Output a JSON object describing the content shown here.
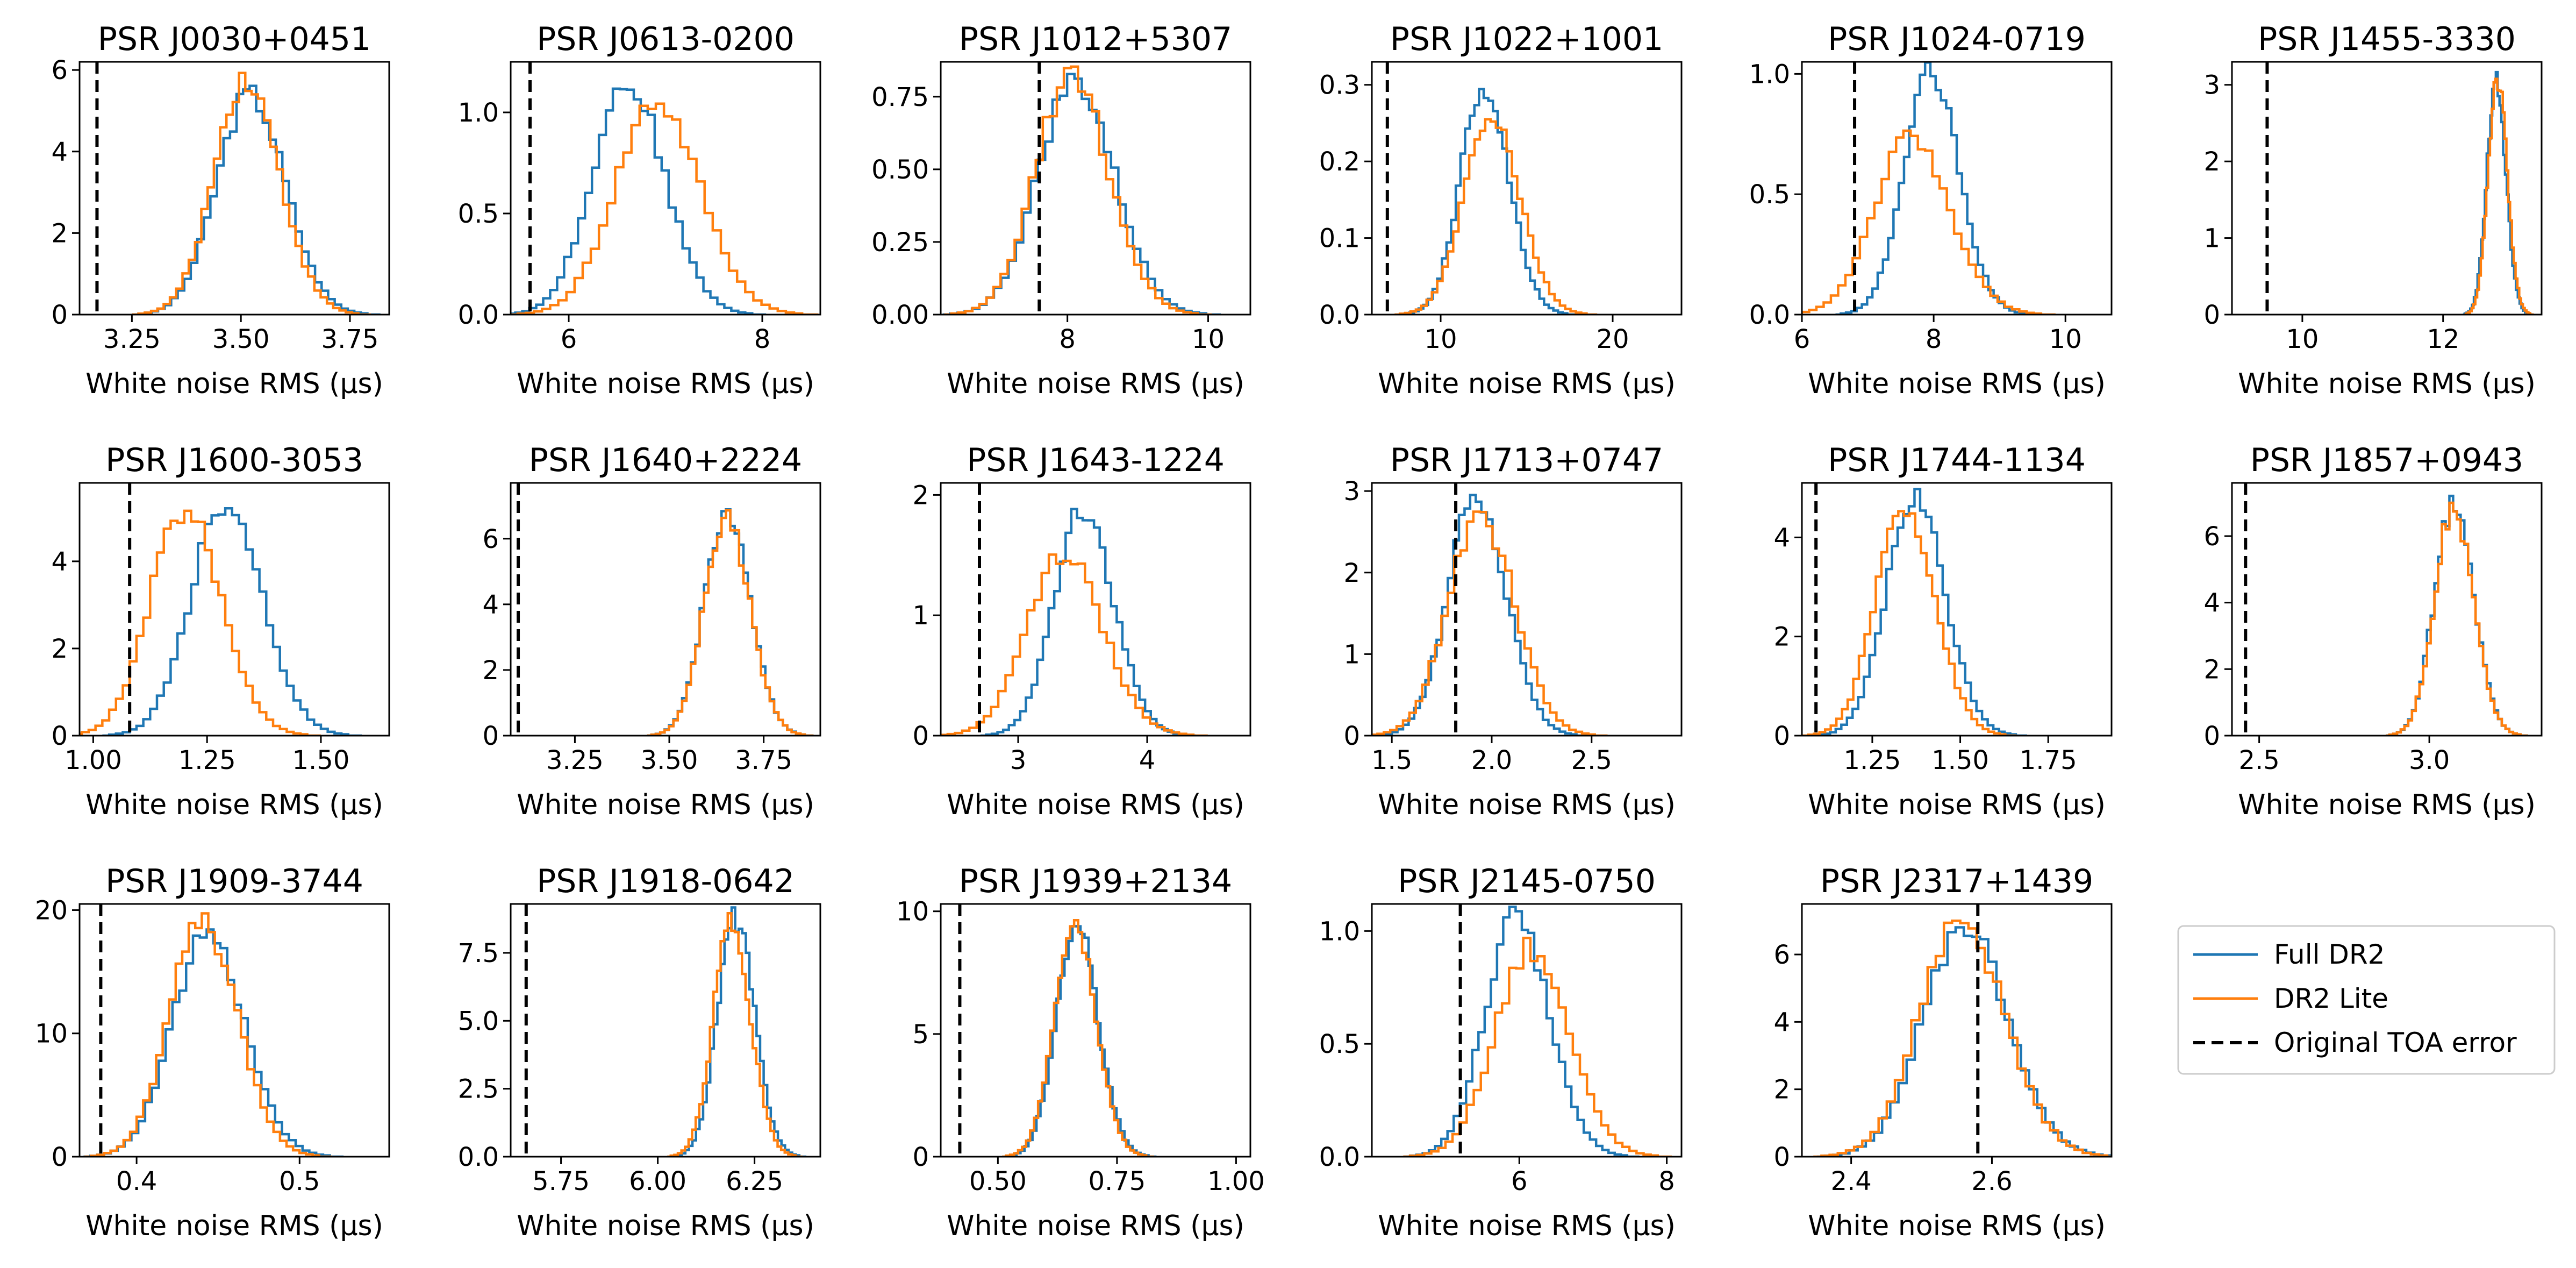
{
  "legend": {
    "location": "right of last row",
    "entries": [
      {
        "label": "Full DR2",
        "color": "#1f77b4",
        "style": "solid"
      },
      {
        "label": "DR2 Lite",
        "color": "#ff7f0e",
        "style": "solid"
      },
      {
        "label": "Original TOA error",
        "color": "#000000",
        "style": "dashed"
      }
    ]
  },
  "chart_data": [
    {
      "type": "histogram",
      "title": "PSR J0030+0451",
      "xlabel": "White noise RMS (μs)",
      "xlim": [
        3.13,
        3.84
      ],
      "ylim": [
        0,
        6.2
      ],
      "xticks": [
        3.25,
        3.5,
        3.75
      ],
      "xtick_labels": [
        "3.25",
        "3.50",
        "3.75"
      ],
      "yticks": [
        0,
        2,
        4,
        6
      ],
      "ytick_labels": [
        "0",
        "2",
        "4",
        "6"
      ],
      "vline": 3.17,
      "series": [
        {
          "name": "Full DR2",
          "color": "#1f77b4",
          "center": 3.52,
          "sd": 0.075,
          "peak": 5.4
        },
        {
          "name": "DR2 Lite",
          "color": "#ff7f0e",
          "center": 3.51,
          "sd": 0.072,
          "peak": 5.8
        }
      ]
    },
    {
      "type": "histogram",
      "title": "PSR J0613-0200",
      "xlabel": "White noise RMS (μs)",
      "xlim": [
        5.4,
        8.6
      ],
      "ylim": [
        0,
        1.25
      ],
      "xticks": [
        6,
        8
      ],
      "xtick_labels": [
        "6",
        "8"
      ],
      "yticks": [
        0,
        0.5,
        1.0
      ],
      "ytick_labels": [
        "0.0",
        "0.5",
        "1.0"
      ],
      "vline": 5.6,
      "series": [
        {
          "name": "Full DR2",
          "color": "#1f77b4",
          "center": 6.6,
          "sd": 0.36,
          "peak": 1.15
        },
        {
          "name": "DR2 Lite",
          "color": "#ff7f0e",
          "center": 6.9,
          "sd": 0.42,
          "peak": 1.05
        }
      ]
    },
    {
      "type": "histogram",
      "title": "PSR J1012+5307",
      "xlabel": "White noise RMS (μs)",
      "xlim": [
        6.2,
        10.6
      ],
      "ylim": [
        0,
        0.87
      ],
      "xticks": [
        8,
        10
      ],
      "xtick_labels": [
        "8",
        "10"
      ],
      "yticks": [
        0,
        0.25,
        0.5,
        0.75
      ],
      "ytick_labels": [
        "0.00",
        "0.25",
        "0.50",
        "0.75"
      ],
      "vline": 7.6,
      "series": [
        {
          "name": "Full DR2",
          "color": "#1f77b4",
          "center": 8.1,
          "sd": 0.52,
          "peak": 0.8
        },
        {
          "name": "DR2 Lite",
          "color": "#ff7f0e",
          "center": 8.05,
          "sd": 0.5,
          "peak": 0.82
        }
      ]
    },
    {
      "type": "histogram",
      "title": "PSR J1022+1001",
      "xlabel": "White noise RMS (μs)",
      "xlim": [
        6,
        24
      ],
      "ylim": [
        0,
        0.33
      ],
      "xticks": [
        10,
        20
      ],
      "xtick_labels": [
        "10",
        "20"
      ],
      "yticks": [
        0,
        0.1,
        0.2,
        0.3
      ],
      "ytick_labels": [
        "0.0",
        "0.1",
        "0.2",
        "0.3"
      ],
      "vline": 6.9,
      "series": [
        {
          "name": "Full DR2",
          "color": "#1f77b4",
          "center": 12.5,
          "sd": 1.35,
          "peak": 0.3
        },
        {
          "name": "DR2 Lite",
          "color": "#ff7f0e",
          "center": 12.9,
          "sd": 1.55,
          "peak": 0.26
        }
      ]
    },
    {
      "type": "histogram",
      "title": "PSR J1024-0719",
      "xlabel": "White noise RMS (μs)",
      "xlim": [
        6,
        10.7
      ],
      "ylim": [
        0,
        1.05
      ],
      "xticks": [
        6,
        8,
        10
      ],
      "xtick_labels": [
        "6",
        "8",
        "10"
      ],
      "yticks": [
        0,
        0.5,
        1.0
      ],
      "ytick_labels": [
        "0.0",
        "0.5",
        "1.0"
      ],
      "vline": 6.8,
      "series": [
        {
          "name": "Full DR2",
          "color": "#1f77b4",
          "center": 7.95,
          "sd": 0.4,
          "peak": 1.0
        },
        {
          "name": "DR2 Lite",
          "color": "#ff7f0e",
          "center": 7.65,
          "sd": 0.55,
          "peak": 0.73
        }
      ]
    },
    {
      "type": "histogram",
      "title": "PSR J1455-3330",
      "xlabel": "White noise RMS (μs)",
      "xlim": [
        9.0,
        13.4
      ],
      "ylim": [
        0,
        3.3
      ],
      "xticks": [
        10,
        12
      ],
      "xtick_labels": [
        "10",
        "12"
      ],
      "yticks": [
        0,
        1,
        2,
        3
      ],
      "ytick_labels": [
        "0",
        "1",
        "2",
        "3"
      ],
      "vline": 9.5,
      "series": [
        {
          "name": "Full DR2",
          "color": "#1f77b4",
          "center": 12.75,
          "sd": 0.13,
          "peak": 3.05
        },
        {
          "name": "DR2 Lite",
          "color": "#ff7f0e",
          "center": 12.77,
          "sd": 0.13,
          "peak": 3.1
        }
      ]
    },
    {
      "type": "histogram",
      "title": "PSR J1600-3053",
      "xlabel": "White noise RMS (μs)",
      "xlim": [
        0.97,
        1.65
      ],
      "ylim": [
        0,
        5.8
      ],
      "xticks": [
        1.0,
        1.25,
        1.5
      ],
      "xtick_labels": [
        "1.00",
        "1.25",
        "1.50"
      ],
      "yticks": [
        0,
        2,
        4
      ],
      "ytick_labels": [
        "0",
        "2",
        "4"
      ],
      "vline": 1.08,
      "series": [
        {
          "name": "Full DR2",
          "color": "#1f77b4",
          "center": 1.29,
          "sd": 0.075,
          "peak": 5.4
        },
        {
          "name": "DR2 Lite",
          "color": "#ff7f0e",
          "center": 1.2,
          "sd": 0.075,
          "peak": 5.2
        }
      ]
    },
    {
      "type": "histogram",
      "title": "PSR J1640+2224",
      "xlabel": "White noise RMS (μs)",
      "xlim": [
        3.08,
        3.9
      ],
      "ylim": [
        0,
        7.7
      ],
      "xticks": [
        3.25,
        3.5,
        3.75
      ],
      "xtick_labels": [
        "3.25",
        "3.50",
        "3.75"
      ],
      "yticks": [
        0,
        2,
        4,
        6
      ],
      "ytick_labels": [
        "0",
        "2",
        "4",
        "6"
      ],
      "vline": 3.1,
      "series": [
        {
          "name": "Full DR2",
          "color": "#1f77b4",
          "center": 3.65,
          "sd": 0.058,
          "peak": 6.8
        },
        {
          "name": "DR2 Lite",
          "color": "#ff7f0e",
          "center": 3.65,
          "sd": 0.058,
          "peak": 6.6
        }
      ]
    },
    {
      "type": "histogram",
      "title": "PSR J1643-1224",
      "xlabel": "White noise RMS (μs)",
      "xlim": [
        2.4,
        4.8
      ],
      "ylim": [
        0,
        2.1
      ],
      "xticks": [
        3,
        4
      ],
      "xtick_labels": [
        "3",
        "4"
      ],
      "yticks": [
        0,
        1,
        2
      ],
      "ytick_labels": [
        "0",
        "1",
        "2"
      ],
      "vline": 2.7,
      "series": [
        {
          "name": "Full DR2",
          "color": "#1f77b4",
          "center": 3.5,
          "sd": 0.22,
          "peak": 1.9
        },
        {
          "name": "DR2 Lite",
          "color": "#ff7f0e",
          "center": 3.35,
          "sd": 0.28,
          "peak": 1.5
        }
      ]
    },
    {
      "type": "histogram",
      "title": "PSR J1713+0747",
      "xlabel": "White noise RMS (μs)",
      "xlim": [
        1.4,
        2.95
      ],
      "ylim": [
        0,
        3.1
      ],
      "xticks": [
        1.5,
        2.0,
        2.5
      ],
      "xtick_labels": [
        "1.5",
        "2.0",
        "2.5"
      ],
      "yticks": [
        0,
        1,
        2,
        3
      ],
      "ytick_labels": [
        "0",
        "1",
        "2",
        "3"
      ],
      "vline": 1.82,
      "series": [
        {
          "name": "Full DR2",
          "color": "#1f77b4",
          "center": 1.92,
          "sd": 0.14,
          "peak": 2.9
        },
        {
          "name": "DR2 Lite",
          "color": "#ff7f0e",
          "center": 1.94,
          "sd": 0.16,
          "peak": 2.7
        }
      ]
    },
    {
      "type": "histogram",
      "title": "PSR J1744-1134",
      "xlabel": "White noise RMS (μs)",
      "xlim": [
        1.05,
        1.93
      ],
      "ylim": [
        0,
        5.1
      ],
      "xticks": [
        1.25,
        1.5,
        1.75
      ],
      "xtick_labels": [
        "1.25",
        "1.50",
        "1.75"
      ],
      "yticks": [
        0,
        2,
        4
      ],
      "ytick_labels": [
        "0",
        "2",
        "4"
      ],
      "vline": 1.09,
      "series": [
        {
          "name": "Full DR2",
          "color": "#1f77b4",
          "center": 1.37,
          "sd": 0.08,
          "peak": 4.8
        },
        {
          "name": "DR2 Lite",
          "color": "#ff7f0e",
          "center": 1.34,
          "sd": 0.08,
          "peak": 4.7
        }
      ]
    },
    {
      "type": "histogram",
      "title": "PSR J1857+0943",
      "xlabel": "White noise RMS (μs)",
      "xlim": [
        2.42,
        3.33
      ],
      "ylim": [
        0,
        7.6
      ],
      "xticks": [
        2.5,
        3.0
      ],
      "xtick_labels": [
        "2.5",
        "3.0"
      ],
      "yticks": [
        0,
        2,
        4,
        6
      ],
      "ytick_labels": [
        "0",
        "2",
        "4",
        "6"
      ],
      "vline": 2.46,
      "series": [
        {
          "name": "Full DR2",
          "color": "#1f77b4",
          "center": 3.07,
          "sd": 0.055,
          "peak": 7.0
        },
        {
          "name": "DR2 Lite",
          "color": "#ff7f0e",
          "center": 3.07,
          "sd": 0.055,
          "peak": 6.8
        }
      ]
    },
    {
      "type": "histogram",
      "title": "PSR J1909-3744",
      "xlabel": "White noise RMS (μs)",
      "xlim": [
        0.365,
        0.555
      ],
      "ylim": [
        0,
        20.5
      ],
      "xticks": [
        0.4,
        0.5
      ],
      "xtick_labels": [
        "0.4",
        "0.5"
      ],
      "yticks": [
        0,
        10,
        20
      ],
      "ytick_labels": [
        "0",
        "10",
        "20"
      ],
      "vline": 0.378,
      "series": [
        {
          "name": "Full DR2",
          "color": "#1f77b4",
          "center": 0.443,
          "sd": 0.021,
          "peak": 18.2
        },
        {
          "name": "DR2 Lite",
          "color": "#ff7f0e",
          "center": 0.44,
          "sd": 0.02,
          "peak": 19.0
        }
      ]
    },
    {
      "type": "histogram",
      "title": "PSR J1918-0642",
      "xlabel": "White noise RMS (μs)",
      "xlim": [
        5.62,
        6.42
      ],
      "ylim": [
        0,
        9.3
      ],
      "xticks": [
        5.75,
        6.0,
        6.25
      ],
      "xtick_labels": [
        "5.75",
        "6.00",
        "6.25"
      ],
      "yticks": [
        0,
        2.5,
        5,
        7.5
      ],
      "ytick_labels": [
        "0.0",
        "2.5",
        "5.0",
        "7.5"
      ],
      "vline": 5.66,
      "series": [
        {
          "name": "Full DR2",
          "color": "#1f77b4",
          "center": 6.2,
          "sd": 0.046,
          "peak": 8.8
        },
        {
          "name": "DR2 Lite",
          "color": "#ff7f0e",
          "center": 6.19,
          "sd": 0.046,
          "peak": 8.6
        }
      ]
    },
    {
      "type": "histogram",
      "title": "PSR J1939+2134",
      "xlabel": "White noise RMS (μs)",
      "xlim": [
        0.38,
        1.03
      ],
      "ylim": [
        0,
        10.3
      ],
      "xticks": [
        0.5,
        0.75,
        1.0
      ],
      "xtick_labels": [
        "0.50",
        "0.75",
        "1.00"
      ],
      "yticks": [
        0,
        5,
        10
      ],
      "ytick_labels": [
        "0",
        "5",
        "10"
      ],
      "vline": 0.42,
      "series": [
        {
          "name": "Full DR2",
          "color": "#1f77b4",
          "center": 0.665,
          "sd": 0.042,
          "peak": 9.5
        },
        {
          "name": "DR2 Lite",
          "color": "#ff7f0e",
          "center": 0.66,
          "sd": 0.042,
          "peak": 9.5
        }
      ]
    },
    {
      "type": "histogram",
      "title": "PSR J2145-0750",
      "xlabel": "White noise RMS (μs)",
      "xlim": [
        4.0,
        8.2
      ],
      "ylim": [
        0,
        1.12
      ],
      "xticks": [
        6,
        8
      ],
      "xtick_labels": [
        "6",
        "8"
      ],
      "yticks": [
        0,
        0.5,
        1.0
      ],
      "ytick_labels": [
        "0.0",
        "0.5",
        "1.0"
      ],
      "vline": 5.2,
      "series": [
        {
          "name": "Full DR2",
          "color": "#1f77b4",
          "center": 5.95,
          "sd": 0.42,
          "peak": 1.05
        },
        {
          "name": "DR2 Lite",
          "color": "#ff7f0e",
          "center": 6.15,
          "sd": 0.48,
          "peak": 0.92
        }
      ]
    },
    {
      "type": "histogram",
      "title": "PSR J2317+1439",
      "xlabel": "White noise RMS (μs)",
      "xlim": [
        2.33,
        2.77
      ],
      "ylim": [
        0,
        7.5
      ],
      "xticks": [
        2.4,
        2.6
      ],
      "xtick_labels": [
        "2.4",
        "2.6"
      ],
      "yticks": [
        0,
        2,
        4,
        6
      ],
      "ytick_labels": [
        "0",
        "2",
        "4",
        "6"
      ],
      "vline": 2.58,
      "series": [
        {
          "name": "Full DR2",
          "color": "#1f77b4",
          "center": 2.56,
          "sd": 0.058,
          "peak": 6.8
        },
        {
          "name": "DR2 Lite",
          "color": "#ff7f0e",
          "center": 2.555,
          "sd": 0.058,
          "peak": 7.0
        }
      ]
    }
  ]
}
